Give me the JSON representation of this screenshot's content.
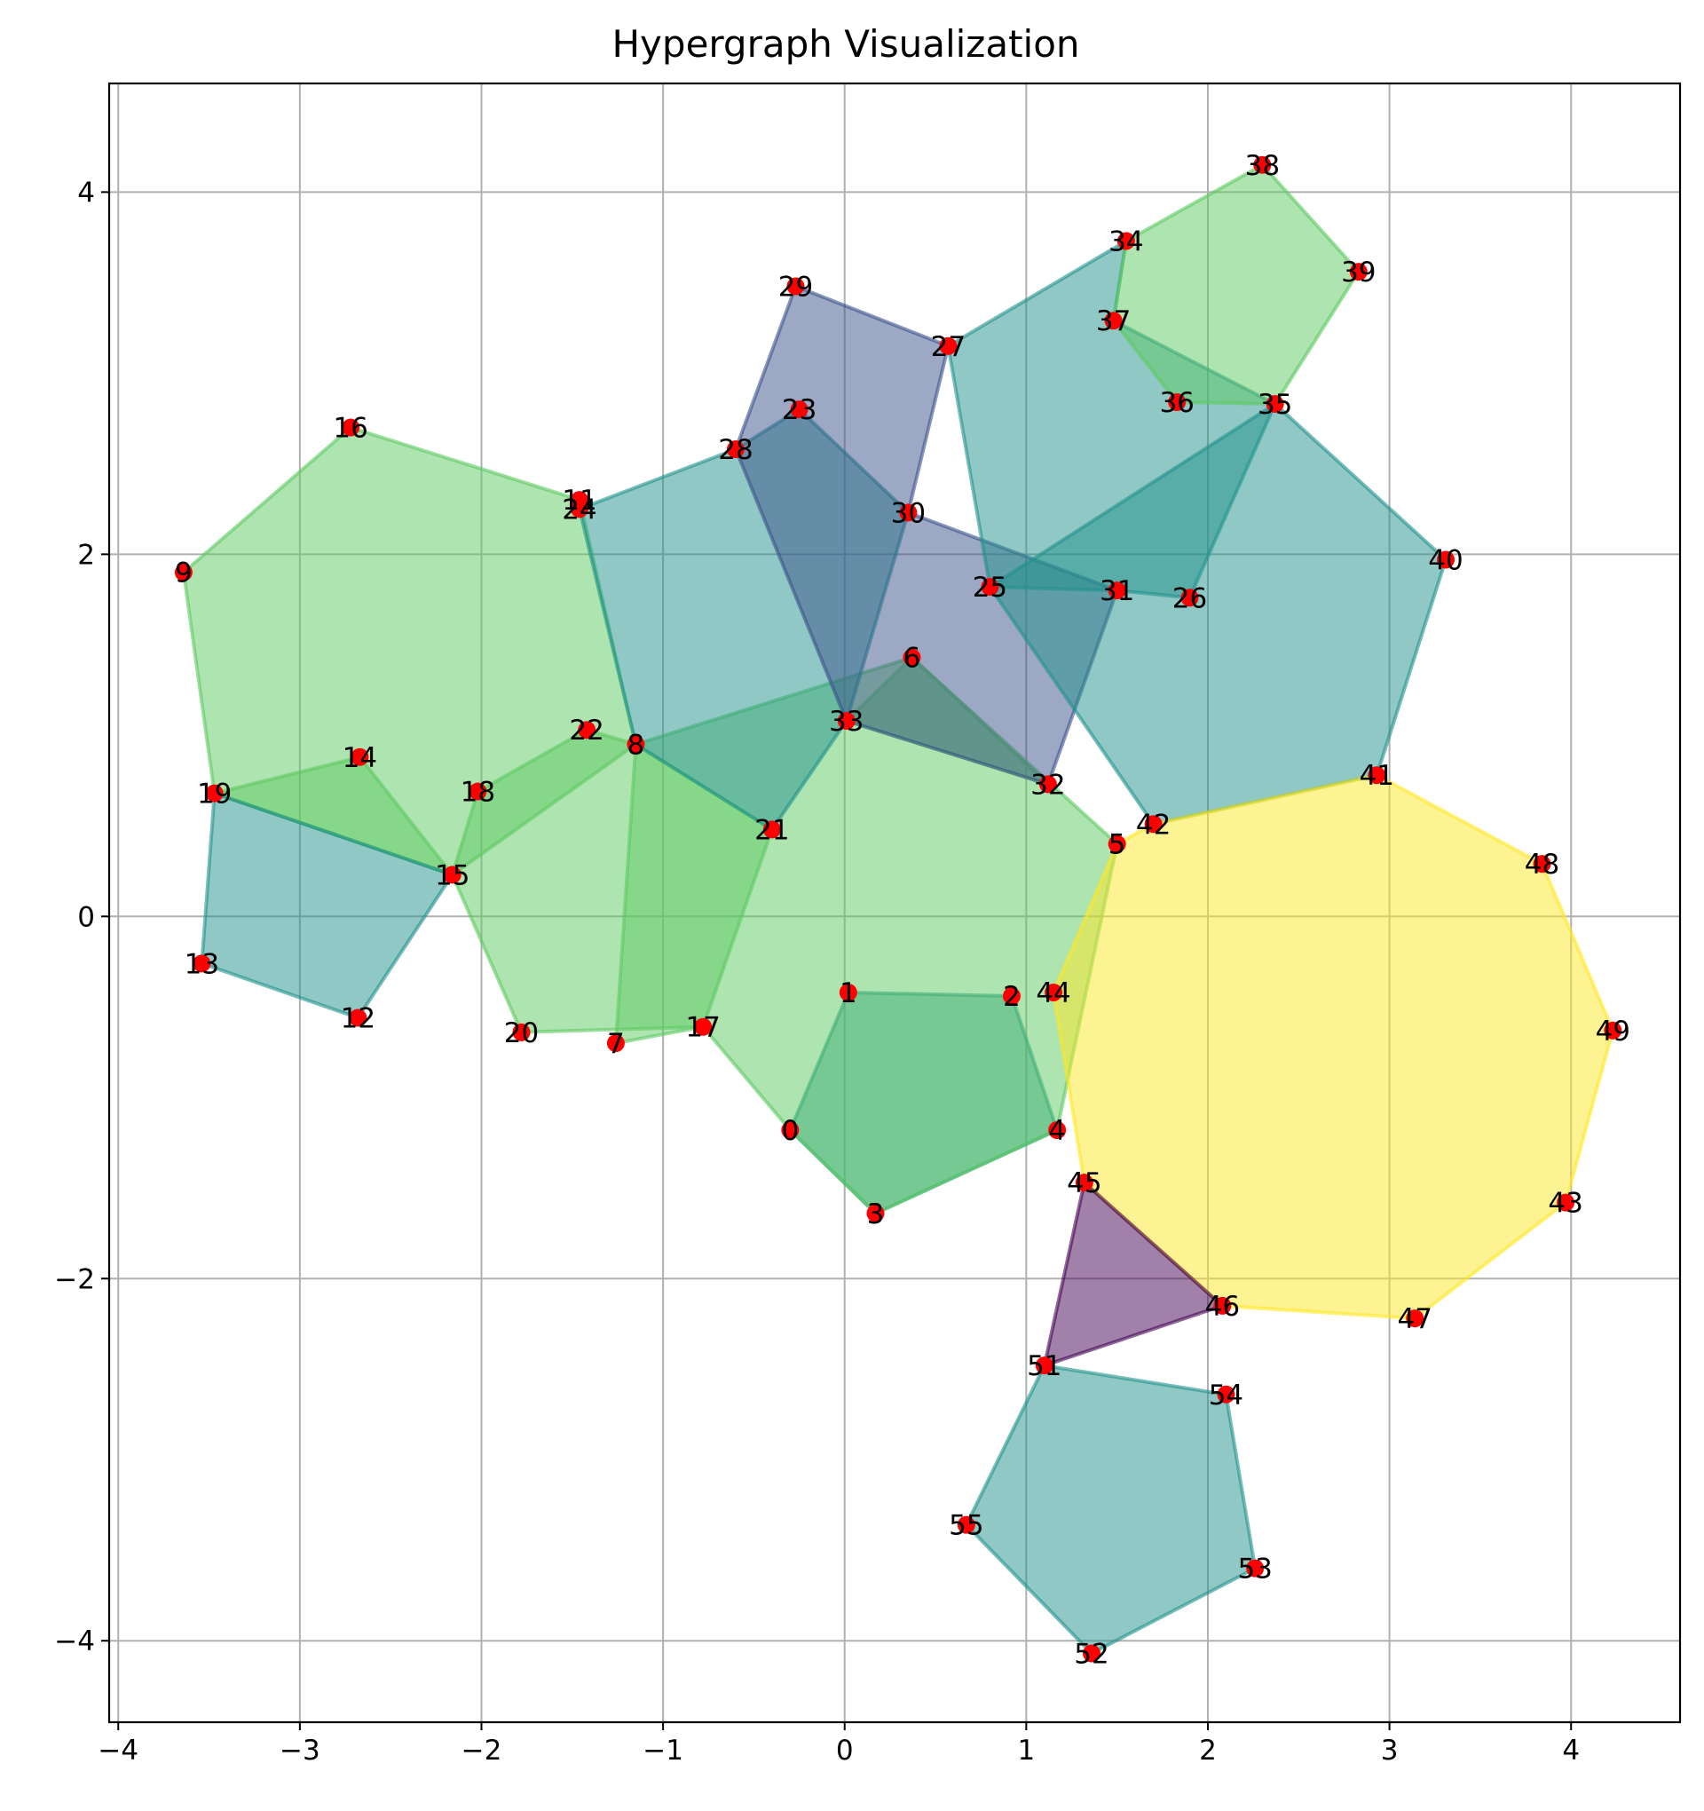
{
  "chart_data": {
    "type": "scatter",
    "subtype": "hypergraph",
    "title": "Hypergraph Visualization",
    "xlabel": "",
    "ylabel": "",
    "xlim": [
      -4.05,
      4.6
    ],
    "ylim": [
      -4.45,
      4.6
    ],
    "xticks": [
      -4,
      -3,
      -2,
      -1,
      0,
      1,
      2,
      3,
      4
    ],
    "yticks": [
      -4,
      -2,
      0,
      2,
      4
    ],
    "xtick_labels": [
      "−4",
      "−3",
      "−2",
      "−1",
      "0",
      "1",
      "2",
      "3",
      "4"
    ],
    "ytick_labels": [
      "−4",
      "−2",
      "0",
      "2",
      "4"
    ],
    "grid": true,
    "node_color": "#ff0000",
    "nodes": [
      {
        "id": "0",
        "x": -0.3,
        "y": -1.18
      },
      {
        "id": "1",
        "x": 0.02,
        "y": -0.42
      },
      {
        "id": "2",
        "x": 0.92,
        "y": -0.44
      },
      {
        "id": "3",
        "x": 0.17,
        "y": -1.64
      },
      {
        "id": "4",
        "x": 1.17,
        "y": -1.18
      },
      {
        "id": "5",
        "x": 1.5,
        "y": 0.4
      },
      {
        "id": "6",
        "x": 0.37,
        "y": 1.43
      },
      {
        "id": "7",
        "x": -1.26,
        "y": -0.7
      },
      {
        "id": "8",
        "x": -1.15,
        "y": 0.95
      },
      {
        "id": "9",
        "x": -3.64,
        "y": 1.9
      },
      {
        "id": "11",
        "x": -1.46,
        "y": 2.3
      },
      {
        "id": "12",
        "x": -2.68,
        "y": -0.56
      },
      {
        "id": "13",
        "x": -3.54,
        "y": -0.26
      },
      {
        "id": "14",
        "x": -2.67,
        "y": 0.88
      },
      {
        "id": "15",
        "x": -2.16,
        "y": 0.23
      },
      {
        "id": "16",
        "x": -2.72,
        "y": 2.7
      },
      {
        "id": "17",
        "x": -0.78,
        "y": -0.61
      },
      {
        "id": "18",
        "x": -2.02,
        "y": 0.69
      },
      {
        "id": "19",
        "x": -3.47,
        "y": 0.68
      },
      {
        "id": "20",
        "x": -1.78,
        "y": -0.64
      },
      {
        "id": "21",
        "x": -0.4,
        "y": 0.48
      },
      {
        "id": "22",
        "x": -1.42,
        "y": 1.03
      },
      {
        "id": "23",
        "x": -0.25,
        "y": 2.8
      },
      {
        "id": "24",
        "x": -1.46,
        "y": 2.25
      },
      {
        "id": "25",
        "x": 0.8,
        "y": 1.82
      },
      {
        "id": "26",
        "x": 1.9,
        "y": 1.76
      },
      {
        "id": "27",
        "x": 0.57,
        "y": 3.15
      },
      {
        "id": "28",
        "x": -0.6,
        "y": 2.58
      },
      {
        "id": "29",
        "x": -0.27,
        "y": 3.48
      },
      {
        "id": "30",
        "x": 0.35,
        "y": 2.23
      },
      {
        "id": "31",
        "x": 1.5,
        "y": 1.8
      },
      {
        "id": "32",
        "x": 1.12,
        "y": 0.73
      },
      {
        "id": "33",
        "x": 0.01,
        "y": 1.08
      },
      {
        "id": "34",
        "x": 1.55,
        "y": 3.73
      },
      {
        "id": "35",
        "x": 2.37,
        "y": 2.83
      },
      {
        "id": "36",
        "x": 1.83,
        "y": 2.84
      },
      {
        "id": "37",
        "x": 1.48,
        "y": 3.29
      },
      {
        "id": "38",
        "x": 2.3,
        "y": 4.15
      },
      {
        "id": "39",
        "x": 2.83,
        "y": 3.56
      },
      {
        "id": "40",
        "x": 3.31,
        "y": 1.97
      },
      {
        "id": "41",
        "x": 2.93,
        "y": 0.78
      },
      {
        "id": "42",
        "x": 1.7,
        "y": 0.51
      },
      {
        "id": "43",
        "x": 3.97,
        "y": -1.58
      },
      {
        "id": "44",
        "x": 1.15,
        "y": -0.42
      },
      {
        "id": "45",
        "x": 1.32,
        "y": -1.47
      },
      {
        "id": "46",
        "x": 2.08,
        "y": -2.15
      },
      {
        "id": "47",
        "x": 3.14,
        "y": -2.22
      },
      {
        "id": "48",
        "x": 3.84,
        "y": 0.29
      },
      {
        "id": "49",
        "x": 4.23,
        "y": -0.63
      },
      {
        "id": "51",
        "x": 1.1,
        "y": -2.48
      },
      {
        "id": "52",
        "x": 1.36,
        "y": -4.07
      },
      {
        "id": "53",
        "x": 2.26,
        "y": -3.6
      },
      {
        "id": "54",
        "x": 2.1,
        "y": -2.64
      },
      {
        "id": "55",
        "x": 0.67,
        "y": -3.36
      }
    ],
    "hyperedges": [
      {
        "members": [
          "0",
          "1",
          "2",
          "4",
          "3"
        ],
        "color": "#21918c"
      },
      {
        "members": [
          "7",
          "8",
          "6",
          "5",
          "4",
          "3",
          "0",
          "17"
        ],
        "color": "#5ec962"
      },
      {
        "members": [
          "9",
          "16",
          "11",
          "8",
          "15",
          "19"
        ],
        "color": "#5ec962"
      },
      {
        "members": [
          "19",
          "14",
          "15"
        ],
        "color": "#5ec962"
      },
      {
        "members": [
          "13",
          "19",
          "15",
          "12"
        ],
        "color": "#21918c"
      },
      {
        "members": [
          "15",
          "18",
          "22",
          "8",
          "21",
          "17",
          "20"
        ],
        "color": "#5ec962"
      },
      {
        "members": [
          "24",
          "28",
          "23",
          "30",
          "33",
          "21",
          "8"
        ],
        "color": "#21918c"
      },
      {
        "members": [
          "33",
          "6",
          "32"
        ],
        "color": "#5ec962"
      },
      {
        "members": [
          "29",
          "27",
          "30",
          "31",
          "32",
          "33",
          "28"
        ],
        "color": "#3b528b"
      },
      {
        "members": [
          "27",
          "34",
          "37",
          "35",
          "26",
          "31",
          "25"
        ],
        "color": "#21918c"
      },
      {
        "members": [
          "34",
          "38",
          "39",
          "35",
          "36",
          "37"
        ],
        "color": "#5ec962"
      },
      {
        "members": [
          "25",
          "35",
          "40",
          "41",
          "42"
        ],
        "color": "#21918c"
      },
      {
        "members": [
          "42",
          "41",
          "48",
          "49",
          "43",
          "47",
          "46",
          "45",
          "44",
          "5"
        ],
        "color": "#fde725"
      },
      {
        "members": [
          "45",
          "46",
          "51"
        ],
        "color": "#440154"
      },
      {
        "members": [
          "51",
          "54",
          "53",
          "52",
          "55"
        ],
        "color": "#21918c"
      }
    ]
  }
}
